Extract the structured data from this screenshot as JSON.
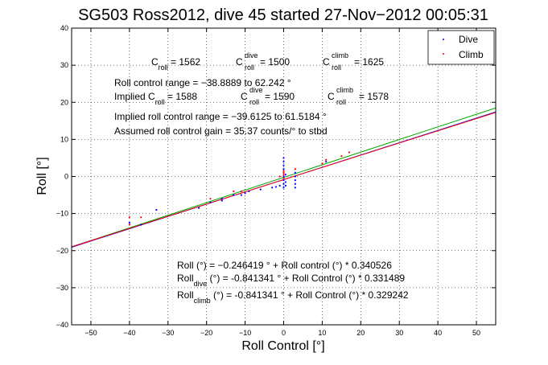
{
  "chart_data": {
    "type": "scatter",
    "title": "SG503 Ross2012, dive 45 started 27-Nov-2012 00:05:31",
    "xlabel": "Roll Control [°]",
    "ylabel": "Roll [°]",
    "xlim": [
      -55,
      55
    ],
    "ylim": [
      -40,
      40
    ],
    "xticks": [
      -50,
      -40,
      -30,
      -20,
      -10,
      0,
      10,
      20,
      30,
      40,
      50
    ],
    "yticks": [
      -40,
      -30,
      -20,
      -10,
      0,
      10,
      20,
      30,
      40
    ],
    "grid": true,
    "legend": {
      "position": "top-right",
      "entries": [
        {
          "label": "Dive",
          "color": "#0000ff"
        },
        {
          "label": "Climb",
          "color": "#ff0000"
        }
      ]
    },
    "fit_lines": [
      {
        "color": "#00aa00",
        "intercept": -0.246419,
        "slope": 0.340526
      },
      {
        "color": "#0000ff",
        "intercept": -0.841341,
        "slope": 0.331489
      },
      {
        "color": "#ff0000",
        "intercept": -0.841341,
        "slope": 0.329242
      }
    ],
    "series": [
      {
        "name": "Dive",
        "color": "#0000ff",
        "points": [
          [
            -40,
            -12.5
          ],
          [
            -37,
            -13
          ],
          [
            -33,
            -9
          ],
          [
            -22,
            -8.5
          ],
          [
            -19,
            -7
          ],
          [
            -16,
            -6.5
          ],
          [
            -16,
            -6
          ],
          [
            -13,
            -5
          ],
          [
            -11,
            -5
          ],
          [
            -10,
            -4.5
          ],
          [
            -9,
            -4
          ],
          [
            -6,
            -3.5
          ],
          [
            -3,
            -3
          ],
          [
            -2,
            -2.8
          ],
          [
            -1,
            -2.5
          ],
          [
            0,
            -3
          ],
          [
            0,
            -2
          ],
          [
            0,
            -1
          ],
          [
            0,
            0
          ],
          [
            0,
            1
          ],
          [
            0,
            2
          ],
          [
            0,
            3
          ],
          [
            0,
            4
          ],
          [
            0,
            5
          ],
          [
            0.5,
            -2.5
          ],
          [
            0.5,
            -1.5
          ],
          [
            0.5,
            0.5
          ],
          [
            3,
            -3
          ],
          [
            3,
            -2
          ],
          [
            3,
            -1
          ],
          [
            3,
            0
          ],
          [
            3,
            1
          ],
          [
            11,
            4
          ]
        ]
      },
      {
        "name": "Climb",
        "color": "#ff0000",
        "points": [
          [
            -40,
            -11
          ],
          [
            -40,
            -13
          ],
          [
            -37,
            -11
          ],
          [
            -19,
            -6
          ],
          [
            -13,
            -4
          ],
          [
            -11,
            -4
          ],
          [
            -1,
            0
          ],
          [
            0,
            0.5
          ],
          [
            0,
            1
          ],
          [
            0,
            1.5
          ],
          [
            0,
            -0.5
          ],
          [
            3,
            2
          ],
          [
            10,
            3.5
          ],
          [
            11,
            4.5
          ],
          [
            15,
            5.5
          ],
          [
            17,
            6.5
          ]
        ]
      }
    ],
    "annotations": {
      "c_roll_line": [
        {
          "main": "C",
          "sub": "roll",
          "sup": "",
          "value": " = 1562"
        },
        {
          "main": "C",
          "sub": "roll",
          "sup": "dive",
          "value": " = 1500"
        },
        {
          "main": "C",
          "sub": "roll",
          "sup": "climb",
          "value": " = 1625"
        }
      ],
      "range_line": "Roll control range = -38.8889 to 62.242 °",
      "implied_line": [
        {
          "main": "Implied C",
          "sub": "roll",
          "sup": "",
          "value": " = 1588"
        },
        {
          "main": "C",
          "sub": "roll",
          "sup": "dive",
          "value": " = 1590"
        },
        {
          "main": "C",
          "sub": "roll",
          "sup": "climb",
          "value": " = 1578"
        }
      ],
      "implied_range_line": "Implied roll control range = -39.6125 to 61.5184 °",
      "gain_line": "Assumed roll control gain = 35.37 counts/° to stbd",
      "fit_eq_1": "Roll (°) = -0.246419 ° + Roll control (°) * 0.340526",
      "fit_eq_2_main": "Roll",
      "fit_eq_2_sub": "dive",
      "fit_eq_2_rest": " (°) = -0.841341 ° + Roll Control (°) * 0.331489",
      "fit_eq_3_main": "Roll",
      "fit_eq_3_sub": "climb",
      "fit_eq_3_rest": " (°) = -0.841341 ° + Roll Control (°) * 0.329242"
    }
  }
}
